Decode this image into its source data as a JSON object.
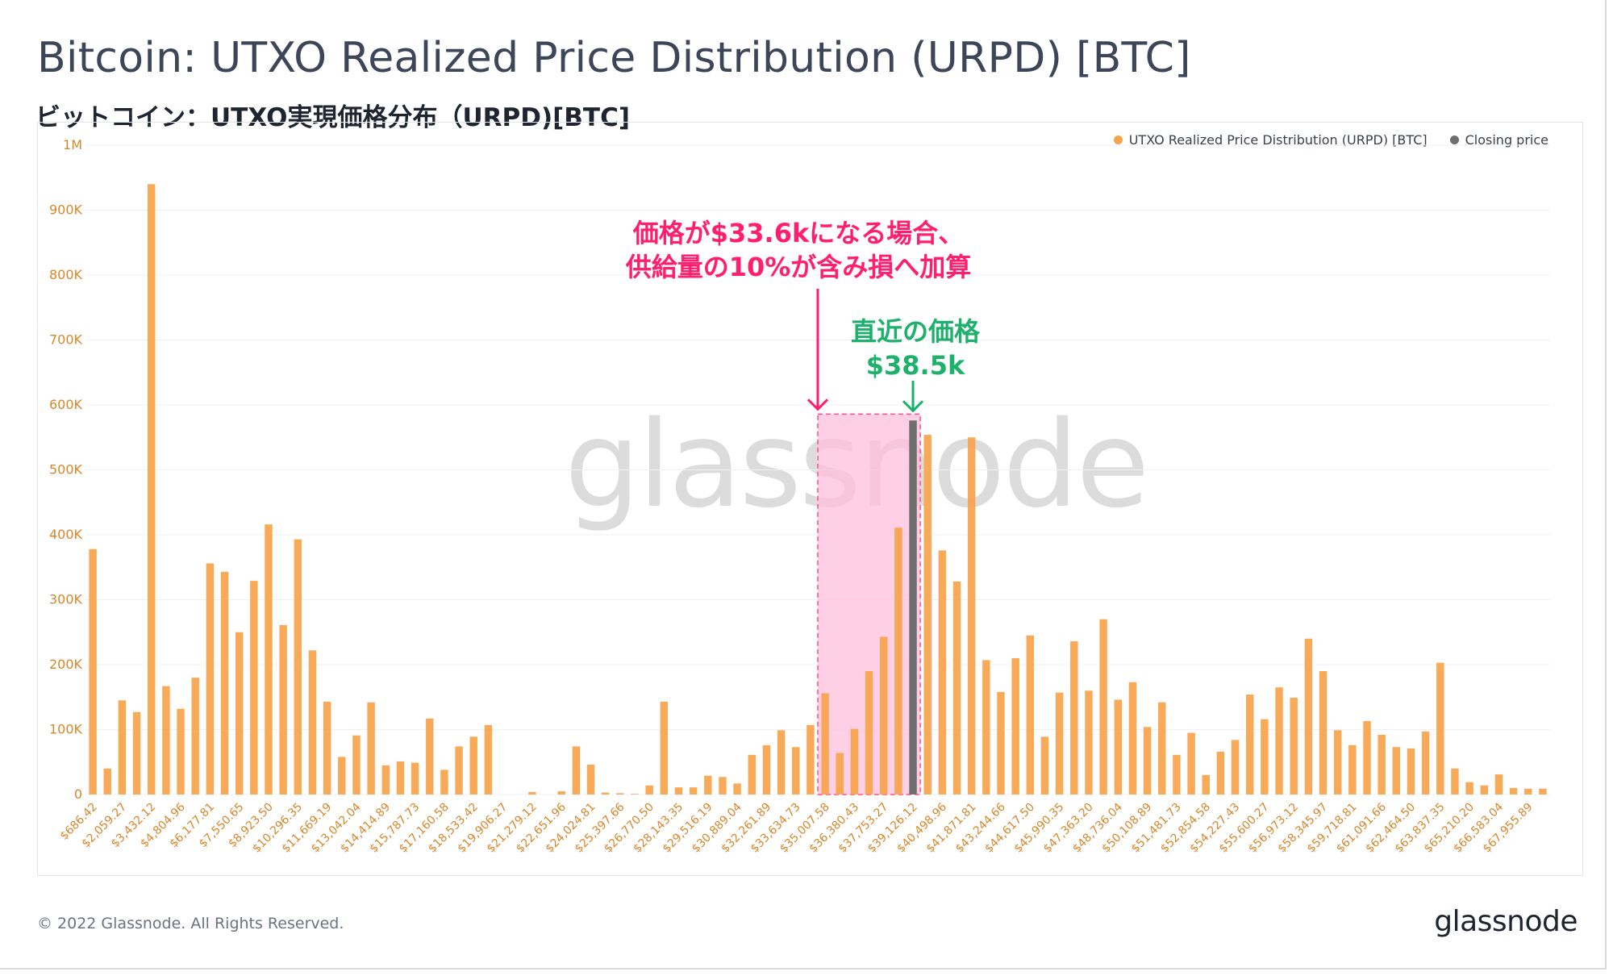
{
  "header": {
    "title": "Bitcoin: UTXO Realized Price Distribution (URPD) [BTC]",
    "subtitle": "ビットコイン：UTXO実現価格分布（URPD)[BTC]"
  },
  "legend": {
    "series1": "UTXO Realized Price Distribution (URPD) [BTC]",
    "series2": "Closing price"
  },
  "annotations": {
    "red_line1": "価格が$33.6kになる場合、",
    "red_line2": "供給量の10%が含み損へ加算",
    "green_line1": "直近の価格",
    "green_line2": "$38.5k"
  },
  "watermark": "glassnode",
  "footer": {
    "copyright": "© 2022 Glassnode. All Rights Reserved.",
    "brand": "glassnode"
  },
  "colors": {
    "bar": "#f7a34b",
    "closing": "#6e6e6e",
    "highlight_fill": "#ffc0dc",
    "highlight_stroke": "#ff4f8f",
    "red": "#ff1f6e",
    "green": "#1db16b",
    "axis_text": "#d9862a",
    "grid": "#eef0f3"
  },
  "chart_data": {
    "type": "bar",
    "title": "Bitcoin: UTXO Realized Price Distribution (URPD) [BTC]",
    "xlabel": "",
    "ylabel": "",
    "ylim": [
      0,
      1000000
    ],
    "yticks": [
      0,
      100000,
      200000,
      300000,
      400000,
      500000,
      600000,
      700000,
      800000,
      900000,
      1000000
    ],
    "ytick_labels": [
      "0",
      "100K",
      "200K",
      "300K",
      "400K",
      "500K",
      "600K",
      "700K",
      "800K",
      "900K",
      "1M"
    ],
    "x_tick_labels": [
      "$686.42",
      "$2,059.27",
      "$3,432.12",
      "$4,804.96",
      "$6,177.81",
      "$7,550.65",
      "$8,923.50",
      "$10,296.35",
      "$11,669.19",
      "$13,042.04",
      "$14,414.89",
      "$15,787.73",
      "$17,160.58",
      "$18,533.42",
      "$19,906.27",
      "$21,279.12",
      "$22,651.96",
      "$24,024.81",
      "$25,397.66",
      "$26,770.50",
      "$28,143.35",
      "$29,516.19",
      "$30,889.04",
      "$32,261.89",
      "$33,634.73",
      "$35,007.58",
      "$36,380.43",
      "$37,753.27",
      "$39,126.12",
      "$40,498.96",
      "$41,871.81",
      "$43,244.66",
      "$44,617.50",
      "$45,990.35",
      "$47,363.20",
      "$48,736.04",
      "$50,108.89",
      "$51,481.73",
      "$52,854.58",
      "$54,227.43",
      "$55,600.27",
      "$56,973.12",
      "$58,345.97",
      "$59,718.81",
      "$61,091.66",
      "$62,464.50",
      "$63,837.35",
      "$65,210.20",
      "$66,583.04",
      "$67,955.89"
    ],
    "bar_width_usd": 686.42,
    "series": [
      {
        "name": "UTXO Realized Price Distribution (URPD) [BTC]",
        "values": [
          378000,
          40000,
          145000,
          127000,
          940000,
          167000,
          132000,
          180000,
          356000,
          343000,
          250000,
          329000,
          416000,
          261000,
          393000,
          222000,
          143000,
          58000,
          91000,
          142000,
          45000,
          51000,
          49000,
          117000,
          38000,
          74000,
          89000,
          107000,
          0,
          0,
          4000,
          0,
          5000,
          74000,
          46000,
          3000,
          2000,
          1000,
          14000,
          143000,
          11000,
          11000,
          29000,
          27000,
          17000,
          61000,
          76000,
          99000,
          73000,
          107000,
          156000,
          64000,
          101000,
          190000,
          243000,
          411000,
          576000,
          554000,
          376000,
          328000,
          550000,
          207000,
          158000,
          210000,
          245000,
          89000,
          157000,
          236000,
          160000,
          270000,
          146000,
          173000,
          104000,
          142000,
          61000,
          95000,
          30000,
          66000,
          84000,
          154000,
          116000,
          165000,
          149000,
          240000,
          190000,
          99000,
          76000,
          113000,
          92000,
          73000,
          71000,
          97000,
          203000,
          40000,
          19000,
          14000,
          31000,
          10000,
          9000,
          9000
        ]
      },
      {
        "name": "Closing price",
        "bin_index": 56,
        "value": 576000,
        "price": "$38.5k"
      }
    ],
    "highlight_range": {
      "from_bin": 50,
      "to_bin": 56,
      "from_price": "$33.6k",
      "to_price": "$38.5k",
      "note": "10% of supply"
    }
  }
}
